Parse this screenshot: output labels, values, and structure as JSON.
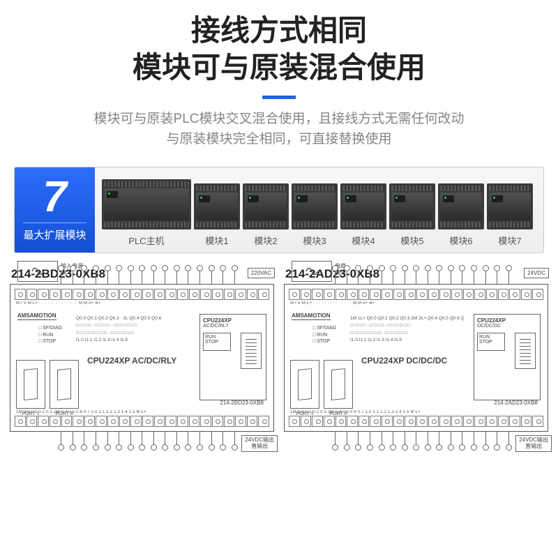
{
  "header": {
    "title_line1": "接线方式相同",
    "title_line2": "模块可与原装混合使用",
    "divider_color": "#1f62e8",
    "sub_line1": "模块可与原装PLC模块交叉混合使用，且接线方式无需任何改动",
    "sub_line2": "与原装模块完全相同，可直接替换使用"
  },
  "strip": {
    "badge_number": "7",
    "badge_label": "最大扩展模块",
    "badge_gradient_top": "#2d6df9",
    "badge_gradient_bottom": "#1450d6",
    "main_label": "PLC主机",
    "ext_labels": [
      "模块1",
      "模块2",
      "模块3",
      "模块4",
      "模块5",
      "模块6",
      "模块7"
    ]
  },
  "diagrams": {
    "left": {
      "model": "214-2BD23-0XB8",
      "power_in_label": "输入电源\n输入",
      "ac_tag": "220VAC",
      "brand": "AMSAMOTION",
      "status_leds": [
        "SF/DIAG",
        "RUN",
        "STOP"
      ],
      "io_row_q": "Q0.0 Q0.1 Q0.2 Q0.3 · 2L Q0.4 Q0.5 Q0.6",
      "io_row_i": "I1.0 I1.1 I1.2 I1.3 I1.4 I1.5",
      "top_terminal_labels": "M  I  V  M  L+  · · · · · · · · · · · · · · M  M  A+ B+",
      "bottom_terminal_labels": "1M 0.0 0.1 0.2 0.3 2M 0.4 0.5 0.6 0.7 1.0 1.1 1.2 1.3 1.4 1.5 M L+",
      "cpu_name": "CPU224XP  AC/DC/RLY",
      "cpu_box_title": "CPU224XP",
      "cpu_box_sub": "AC/DC/RLY",
      "switch_top": "RUN",
      "switch_bot": "STOP",
      "model_inside": "214-2BD23-0XB8",
      "port1": "PORT 1",
      "port0": "PORT 0",
      "dc_tag": "24VDC输出\n直输出"
    },
    "right": {
      "model": "214-2AD23-0XB8",
      "power_in_label": "电缆\n输入",
      "ac_tag": "24VDC",
      "brand": "AMSAMOTION",
      "status_leds": [
        "SF/DIAG",
        "RUN",
        "STOP"
      ],
      "io_row_q": "1M 1L+ Q0.0 Q0.1 Q0.2 Q0.3 2M 2L+ Q0.4 Q0.5 Q0.6 Q0.7 · M L+ DC",
      "io_row_i": "I1.0 I1.1 I1.2 I1.3 I1.4 I1.5",
      "top_terminal_labels": "M  I  V  M  L+  · · · · · · · · · · · · · · M  M  A+ B+",
      "bottom_terminal_labels": "1M 0.0 0.1 0.2 0.3 2M 0.4 0.5 0.6 0.7 1.0 1.1 1.2 1.3 1.4 1.5 M L+",
      "cpu_name": "CPU224XP  DC/DC/DC",
      "cpu_box_title": "CPU224XP",
      "cpu_box_sub": "DC/DC/DC",
      "switch_top": "RUN",
      "switch_bot": "STOP",
      "model_inside": "214-2AD23-0XB8",
      "port1": "PORT 1",
      "port0": "PORT 0",
      "dc_tag": "24VDC输出\n直输出"
    }
  },
  "styling": {
    "title_color": "#222222",
    "subtitle_color": "#858585",
    "strip_border": "#c9c9c9",
    "module_body": "#3a3a3a",
    "diagram_border": "#555555",
    "terminal_border": "#777777"
  }
}
